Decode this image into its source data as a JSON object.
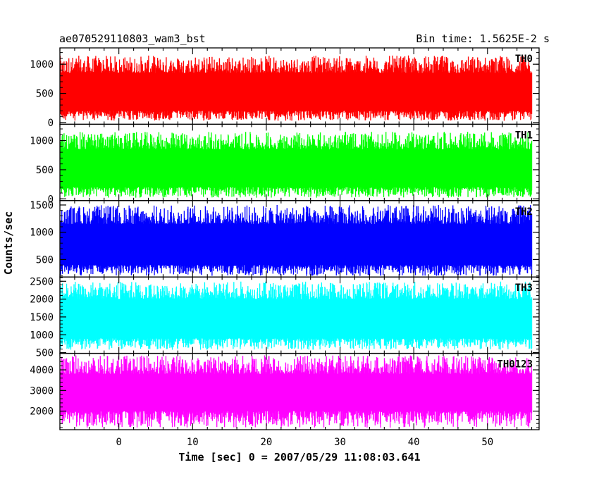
{
  "header": {
    "left_title": "ae070529110803_wam3_bst",
    "right_title": "Bin time: 1.5625E-2 s"
  },
  "chart_data": {
    "type": "line",
    "title": "ae070529110803_wam3_bst",
    "subtitle": "Bin time: 1.5625E-2 s",
    "xlabel": "Time [sec] 0 = 2007/05/29 11:08:03.641",
    "ylabel": "Counts/sec",
    "xlim": [
      -8,
      57
    ],
    "x_range": [
      -8,
      56
    ],
    "x_ticks": [
      0,
      10,
      20,
      30,
      40,
      50
    ],
    "x_tick_labels": [
      "0",
      "10",
      "20",
      "30",
      "40",
      "50"
    ],
    "bin_time": 0.015625,
    "grid": false,
    "panels": [
      {
        "name": "TH0",
        "color": "#ff0000",
        "ylim": [
          -30,
          1280
        ],
        "yticks": [
          0,
          500,
          1000
        ],
        "ytick_labels": [
          "0",
          "500",
          "1000"
        ],
        "typical_low": 200,
        "typical_high": 850,
        "min": 30,
        "max": 1150
      },
      {
        "name": "TH1",
        "color": "#00ff00",
        "ylim": [
          -30,
          1280
        ],
        "yticks": [
          0,
          500,
          1000
        ],
        "ytick_labels": [
          "0",
          "500",
          "1000"
        ],
        "typical_low": 200,
        "typical_high": 850,
        "min": 20,
        "max": 1150
      },
      {
        "name": "TH2",
        "color": "#0000ff",
        "ylim": [
          180,
          1580
        ],
        "yticks": [
          500,
          1000,
          1500
        ],
        "ytick_labels": [
          "500",
          "1000",
          "1500"
        ],
        "typical_low": 400,
        "typical_high": 1150,
        "min": 200,
        "max": 1500
      },
      {
        "name": "TH3",
        "color": "#00ffff",
        "ylim": [
          480,
          2620
        ],
        "yticks": [
          500,
          1000,
          1500,
          2000,
          2500
        ],
        "ytick_labels": [
          "500",
          "1000",
          "1500",
          "2000",
          "2500"
        ],
        "typical_low": 900,
        "typical_high": 2000,
        "min": 580,
        "max": 2500
      },
      {
        "name": "TH0123",
        "color": "#ff00ff",
        "ylim": [
          1100,
          4800
        ],
        "yticks": [
          2000,
          3000,
          4000
        ],
        "ytick_labels": [
          "2000",
          "3000",
          "4000"
        ],
        "typical_low": 2000,
        "typical_high": 3800,
        "min": 1200,
        "max": 4700
      }
    ]
  }
}
